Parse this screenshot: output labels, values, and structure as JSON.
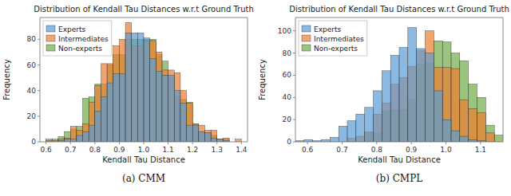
{
  "chart_data": [
    {
      "type": "histogram",
      "title": "Distribution of Kendall Tau Distances w.r.t Ground Truth",
      "subtitle": "(a) CMM",
      "x_label": "Kendall Tau Distance",
      "y_label": "Frequency",
      "bins": [
        0.6,
        0.625,
        0.65,
        0.675,
        0.7,
        0.725,
        0.75,
        0.775,
        0.8,
        0.825,
        0.85,
        0.875,
        0.9,
        0.925,
        0.95,
        0.975,
        1.0,
        1.025,
        1.05,
        1.075,
        1.1,
        1.125,
        1.15,
        1.175,
        1.2,
        1.225,
        1.25,
        1.275,
        1.3,
        1.325,
        1.35,
        1.375,
        1.4
      ],
      "series": [
        {
          "name": "Experts",
          "color": "#5B9BD5",
          "values": [
            0,
            0,
            1,
            2,
            2,
            5,
            8,
            13,
            24,
            35,
            46,
            53,
            53,
            85,
            85,
            85,
            81,
            65,
            55,
            52,
            52,
            40,
            30,
            13,
            13,
            8,
            7,
            3,
            2,
            1,
            0,
            0
          ]
        },
        {
          "name": "Intermediates",
          "color": "#ED7D31",
          "values": [
            1,
            1,
            2,
            3,
            12,
            9,
            14,
            31,
            44,
            61,
            61,
            75,
            80,
            93,
            75,
            75,
            79,
            79,
            70,
            56,
            56,
            54,
            40,
            30,
            14,
            13,
            9,
            9,
            2,
            3,
            0,
            2
          ]
        },
        {
          "name": "Non-experts",
          "color": "#70AD47",
          "values": [
            2,
            2,
            4,
            8,
            10,
            12,
            34,
            35,
            45,
            45,
            60,
            68,
            68,
            80,
            80,
            80,
            80,
            80,
            68,
            63,
            50,
            35,
            33,
            31,
            14,
            8,
            7,
            5,
            2,
            2,
            0,
            0
          ]
        }
      ],
      "xlim": [
        0.575,
        1.425
      ],
      "ylim": [
        0,
        97
      ],
      "xticks": [
        0.6,
        0.7,
        0.8,
        0.9,
        {
          "value": 1.0,
          "label": "1.0"
        },
        1.1,
        1.2,
        1.3,
        1.4
      ],
      "yticks": [
        0,
        20,
        40,
        60,
        80
      ],
      "legend": "upper left",
      "grid": false
    },
    {
      "type": "histogram",
      "title": "Distribution of Kendall Tau Distances w.r.t Ground Truth",
      "subtitle": "(b) CMPL",
      "x_label": "Kendall Tau Distance",
      "y_label": "Frequency",
      "bins": [
        0.565,
        0.59,
        0.615,
        0.64,
        0.665,
        0.69,
        0.715,
        0.74,
        0.765,
        0.79,
        0.815,
        0.84,
        0.865,
        0.89,
        0.915,
        0.94,
        0.965,
        0.99,
        1.015,
        1.04,
        1.065,
        1.09,
        1.115,
        1.14,
        1.165
      ],
      "series": [
        {
          "name": "Experts",
          "color": "#5B9BD5",
          "values": [
            1,
            2,
            1,
            2,
            4,
            14,
            19,
            25,
            31,
            46,
            64,
            78,
            85,
            103,
            84,
            80,
            46,
            20,
            10,
            5,
            2,
            1,
            0,
            0
          ]
        },
        {
          "name": "Intermediates",
          "color": "#ED7D31",
          "values": [
            0,
            0,
            0,
            0,
            0,
            0,
            3,
            5,
            9,
            25,
            35,
            52,
            58,
            68,
            82,
            100,
            67,
            67,
            66,
            38,
            30,
            26,
            8,
            0
          ]
        },
        {
          "name": "Non-experts",
          "color": "#70AD47",
          "values": [
            0,
            0,
            0,
            0,
            0,
            0,
            0,
            0,
            8,
            8,
            28,
            29,
            29,
            38,
            70,
            71,
            91,
            90,
            80,
            73,
            52,
            40,
            15,
            6
          ]
        }
      ],
      "xlim": [
        0.565,
        1.165
      ],
      "ylim": [
        0,
        112
      ],
      "xticks": [
        0.6,
        0.7,
        0.8,
        0.9,
        {
          "value": 1.0,
          "label": "1.0"
        },
        1.1
      ],
      "yticks": [
        0,
        20,
        40,
        60,
        80,
        100
      ],
      "legend": "upper left",
      "grid": false
    }
  ]
}
